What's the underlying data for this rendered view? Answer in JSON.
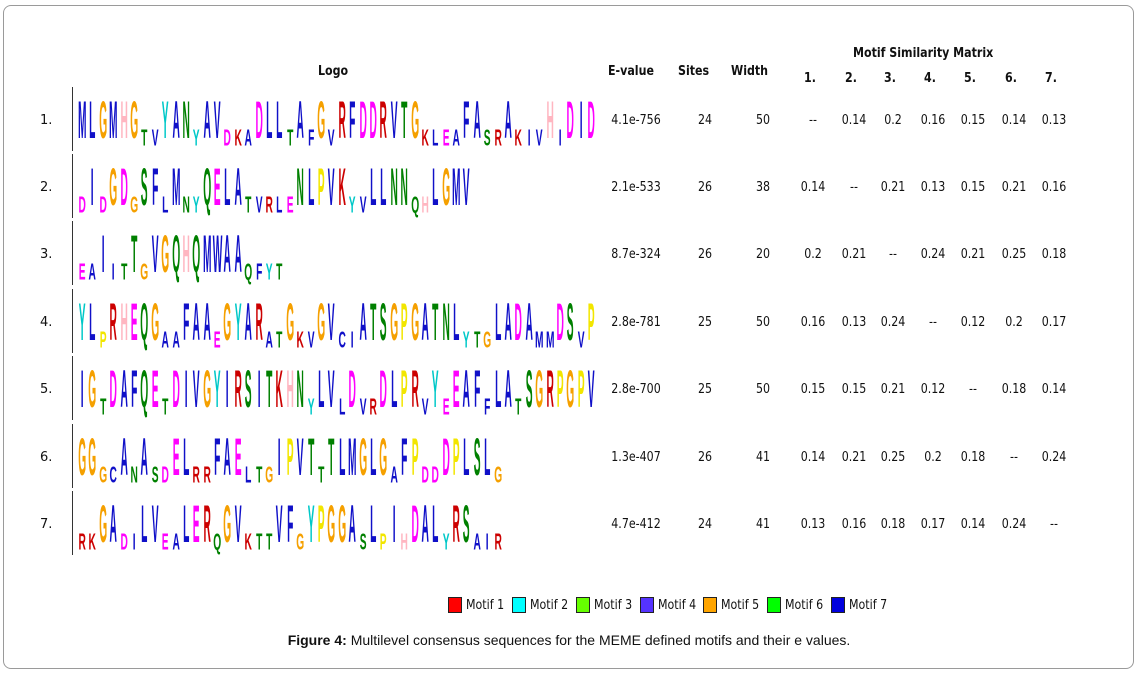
{
  "headers": {
    "logo": "Logo",
    "evalue": "E-value",
    "sites": "Sites",
    "width": "Width",
    "matrix_title": "Motif Similarity Matrix",
    "matrix_cols": [
      "1.",
      "2.",
      "3.",
      "4.",
      "5.",
      "6.",
      "7."
    ]
  },
  "motifs": [
    {
      "num": "1.",
      "logo": "MLGMHGtvYANyAVdkaDLLtAfGvRFDDRVTGkleaFAsrAkivHiDID",
      "evalue": "4.1e-756",
      "sites": "24",
      "width": "50",
      "similarity": [
        "--",
        "0.14",
        "0.2",
        "0.16",
        "0.15",
        "0.14",
        "0.13"
      ]
    },
    {
      "num": "2.",
      "logo": "dIdGDgSFlMnyQELAtvrleNLPVKyvLLNNqhLGMV",
      "evalue": "2.1e-533",
      "sites": "26",
      "width": "38",
      "similarity": [
        "0.14",
        "--",
        "0.21",
        "0.13",
        "0.15",
        "0.21",
        "0.16"
      ]
    },
    {
      "num": "3.",
      "logo": "eaIitTgVGQHQMWAAqfyt",
      "evalue": "8.7e-324",
      "sites": "26",
      "width": "20",
      "similarity": [
        "0.2",
        "0.21",
        "--",
        "0.24",
        "0.21",
        "0.25",
        "0.18"
      ]
    },
    {
      "num": "4.",
      "logo": "YLpRHEQGaaFAAeGYARatGkvGVciATSGPGATNLytgLADAmmDSvP",
      "evalue": "2.8e-781",
      "sites": "25",
      "width": "50",
      "similarity": [
        "0.16",
        "0.13",
        "0.24",
        "--",
        "0.12",
        "0.2",
        "0.17"
      ]
    },
    {
      "num": "5.",
      "logo": "IGtDAFQEtDIVGYIRSITKHNyLVlDvrDLPRvYeEAFfLAtSGRPGPV",
      "evalue": "2.8e-700",
      "sites": "25",
      "width": "50",
      "similarity": [
        "0.15",
        "0.15",
        "0.21",
        "0.12",
        "--",
        "0.18",
        "0.14"
      ]
    },
    {
      "num": "6.",
      "logo": "GGgcAnAsdELrrFAEltgIPVTtTLMGLGaFPddDPLSLg",
      "evalue": "1.3e-407",
      "sites": "26",
      "width": "41",
      "similarity": [
        "0.14",
        "0.21",
        "0.25",
        "0.2",
        "0.18",
        "--",
        "0.24"
      ]
    },
    {
      "num": "7.",
      "logo": "rkGAdiLVeaLERqGVkttVFgYPGGAsLpIhDALyRSair",
      "evalue": "4.7e-412",
      "sites": "24",
      "width": "41",
      "similarity": [
        "0.13",
        "0.16",
        "0.18",
        "0.17",
        "0.14",
        "0.24",
        "--"
      ]
    }
  ],
  "residue_colors": {
    "A": "#1010c8",
    "V": "#1010c8",
    "L": "#1010c8",
    "I": "#1010c8",
    "M": "#1010c8",
    "F": "#1010c8",
    "W": "#1010c8",
    "C": "#1010c8",
    "G": "#f5a000",
    "H": "#ffb6c1",
    "D": "#ff00ff",
    "E": "#ff00ff",
    "K": "#cc0000",
    "R": "#cc0000",
    "N": "#008000",
    "Q": "#008000",
    "S": "#008000",
    "T": "#008000",
    "Y": "#00c8c8",
    "P": "#f2e600"
  },
  "legend": [
    {
      "label": "Motif 1",
      "color": "#ff0000"
    },
    {
      "label": "Motif 2",
      "color": "#00ffff"
    },
    {
      "label": "Motif 3",
      "color": "#66ff00"
    },
    {
      "label": "Motif 4",
      "color": "#5533ff"
    },
    {
      "label": "Motif 5",
      "color": "#ffa500"
    },
    {
      "label": "Motif 6",
      "color": "#00ff00"
    },
    {
      "label": "Motif 7",
      "color": "#0000dd"
    }
  ],
  "caption": {
    "label": "Figure 4:",
    "text": " Multilevel consensus sequences for the MEME defined motifs and their e values."
  }
}
